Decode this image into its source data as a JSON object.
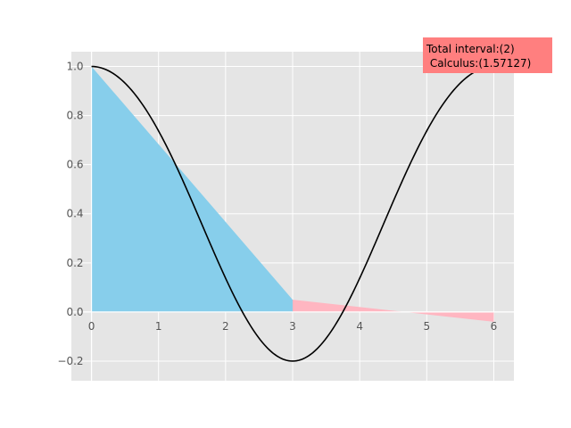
{
  "chart_data": {
    "type": "line",
    "xlim": [
      -0.3,
      6.3
    ],
    "ylim": [
      -0.28,
      1.06
    ],
    "x_ticks": [
      0,
      1,
      2,
      3,
      4,
      5,
      6
    ],
    "y_ticks": [
      -0.2,
      0.0,
      0.2,
      0.4,
      0.6,
      0.8,
      1.0
    ],
    "x_tick_labels": [
      "0",
      "1",
      "2",
      "3",
      "4",
      "5",
      "6"
    ],
    "y_tick_labels": [
      "−0.2",
      "0.0",
      "0.2",
      "0.4",
      "0.6",
      "0.8",
      "1.0"
    ],
    "grid": true,
    "curve": {
      "function": "cos(pi*x/6)^2 - 0.2*sin(pi*x/6)^4",
      "x_range": [
        0,
        6
      ],
      "color": "#000000"
    },
    "filled_regions": [
      {
        "points": [
          [
            0,
            0
          ],
          [
            0,
            1.0
          ],
          [
            3,
            0.05
          ],
          [
            3,
            0
          ]
        ],
        "color": "#87ceeb"
      },
      {
        "points": [
          [
            3,
            0
          ],
          [
            3,
            0.05
          ],
          [
            6,
            -0.04
          ],
          [
            6,
            0
          ]
        ],
        "color": "#ffb6c1"
      }
    ],
    "annotation": {
      "lines": [
        "Total interval:(2)",
        " Calculus:(1.57127)"
      ],
      "background": "#ff7f7f"
    },
    "colors": {
      "axes_background": "#e5e5e5",
      "grid": "#ffffff",
      "tick_label": "#555555"
    }
  }
}
